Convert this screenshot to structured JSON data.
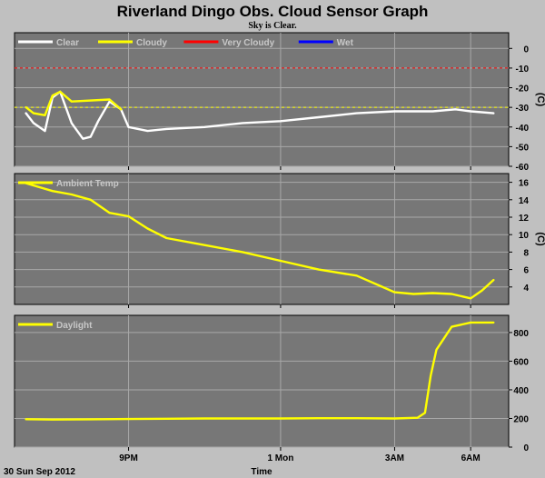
{
  "title": "Riverland Dingo Obs. Cloud Sensor Graph",
  "subtitle": "Sky is Clear.",
  "footer": {
    "date": "30 Sun Sep 2012",
    "xlabel": "Time"
  },
  "x_ticks": [
    "9PM",
    "1 Mon",
    "3AM",
    "6AM"
  ],
  "colors": {
    "background": "#c0c0c0",
    "plot_bg": "#777777",
    "grid": "#a8a8a8",
    "clear": "#ffffff",
    "cloudy": "#ffff00",
    "very_cloudy": "#ff0000",
    "wet": "#0000ff"
  },
  "chart_data": [
    {
      "type": "line",
      "name": "sky-temperature",
      "ylabel": "(C)",
      "ylim": [
        -60,
        8
      ],
      "yticks": [
        0,
        -10,
        -20,
        -30,
        -40,
        -50,
        -60
      ],
      "legend": [
        "Clear",
        "Cloudy",
        "Very Cloudy",
        "Wet"
      ],
      "thresholds": [
        {
          "value": -10,
          "color": "#ff0000",
          "style": "dashed"
        },
        {
          "value": -30,
          "color": "#ffff00",
          "style": "dashed"
        }
      ],
      "x": [
        18.3,
        18.5,
        18.8,
        19.0,
        19.2,
        19.5,
        19.8,
        20.0,
        20.2,
        20.5,
        20.8,
        21.0,
        21.5,
        22.0,
        23.0,
        24.0,
        25.0,
        26.0,
        27.0,
        28.0,
        28.5,
        29.0,
        29.6,
        30.0,
        30.6
      ],
      "series": [
        {
          "name": "Clear",
          "values": [
            -33,
            -38,
            -42,
            -25,
            -22,
            -38,
            -46,
            -45,
            -37,
            -27,
            -31,
            -40,
            -42,
            -41,
            -40,
            -38,
            -37,
            -35,
            -33,
            -32,
            -32,
            -32,
            -31,
            -32,
            -33
          ]
        },
        {
          "name": "Cloudy",
          "x": [
            18.3,
            18.5,
            18.8,
            19.0,
            19.2,
            19.5,
            20.5,
            20.8
          ],
          "values": [
            -30,
            -33,
            -34,
            -24,
            -22,
            -27,
            -26,
            -31
          ]
        }
      ]
    },
    {
      "type": "line",
      "name": "ambient-temperature",
      "ylabel": "(C)",
      "ylim": [
        2,
        17
      ],
      "yticks": [
        16,
        14,
        12,
        10,
        8,
        6,
        4
      ],
      "legend": [
        "Ambient Temp"
      ],
      "x": [
        18.3,
        19.0,
        19.5,
        20.0,
        20.5,
        21.0,
        21.5,
        22.0,
        23.0,
        24.0,
        25.0,
        26.0,
        27.0,
        28.0,
        28.5,
        29.0,
        29.5,
        30.0,
        30.3,
        30.6
      ],
      "series": [
        {
          "name": "Ambient Temp",
          "values": [
            15.9,
            15.0,
            14.6,
            14.0,
            12.5,
            12.1,
            10.7,
            9.6,
            8.8,
            8.0,
            7.0,
            6.0,
            5.3,
            3.4,
            3.2,
            3.3,
            3.2,
            2.7,
            3.6,
            4.8
          ]
        }
      ]
    },
    {
      "type": "line",
      "name": "daylight",
      "ylabel": "",
      "ylim": [
        0,
        920
      ],
      "yticks": [
        800,
        600,
        400,
        200,
        0
      ],
      "legend": [
        "Daylight"
      ],
      "x": [
        18.3,
        19.0,
        20.0,
        21.0,
        22.0,
        23.0,
        24.0,
        25.0,
        26.0,
        27.0,
        28.0,
        28.6,
        28.8,
        28.95,
        29.1,
        29.3,
        29.5,
        30.0,
        30.6
      ],
      "series": [
        {
          "name": "Daylight",
          "values": [
            195,
            192,
            194,
            196,
            198,
            200,
            200,
            200,
            202,
            202,
            200,
            205,
            240,
            500,
            680,
            760,
            840,
            870,
            870
          ]
        }
      ]
    }
  ]
}
